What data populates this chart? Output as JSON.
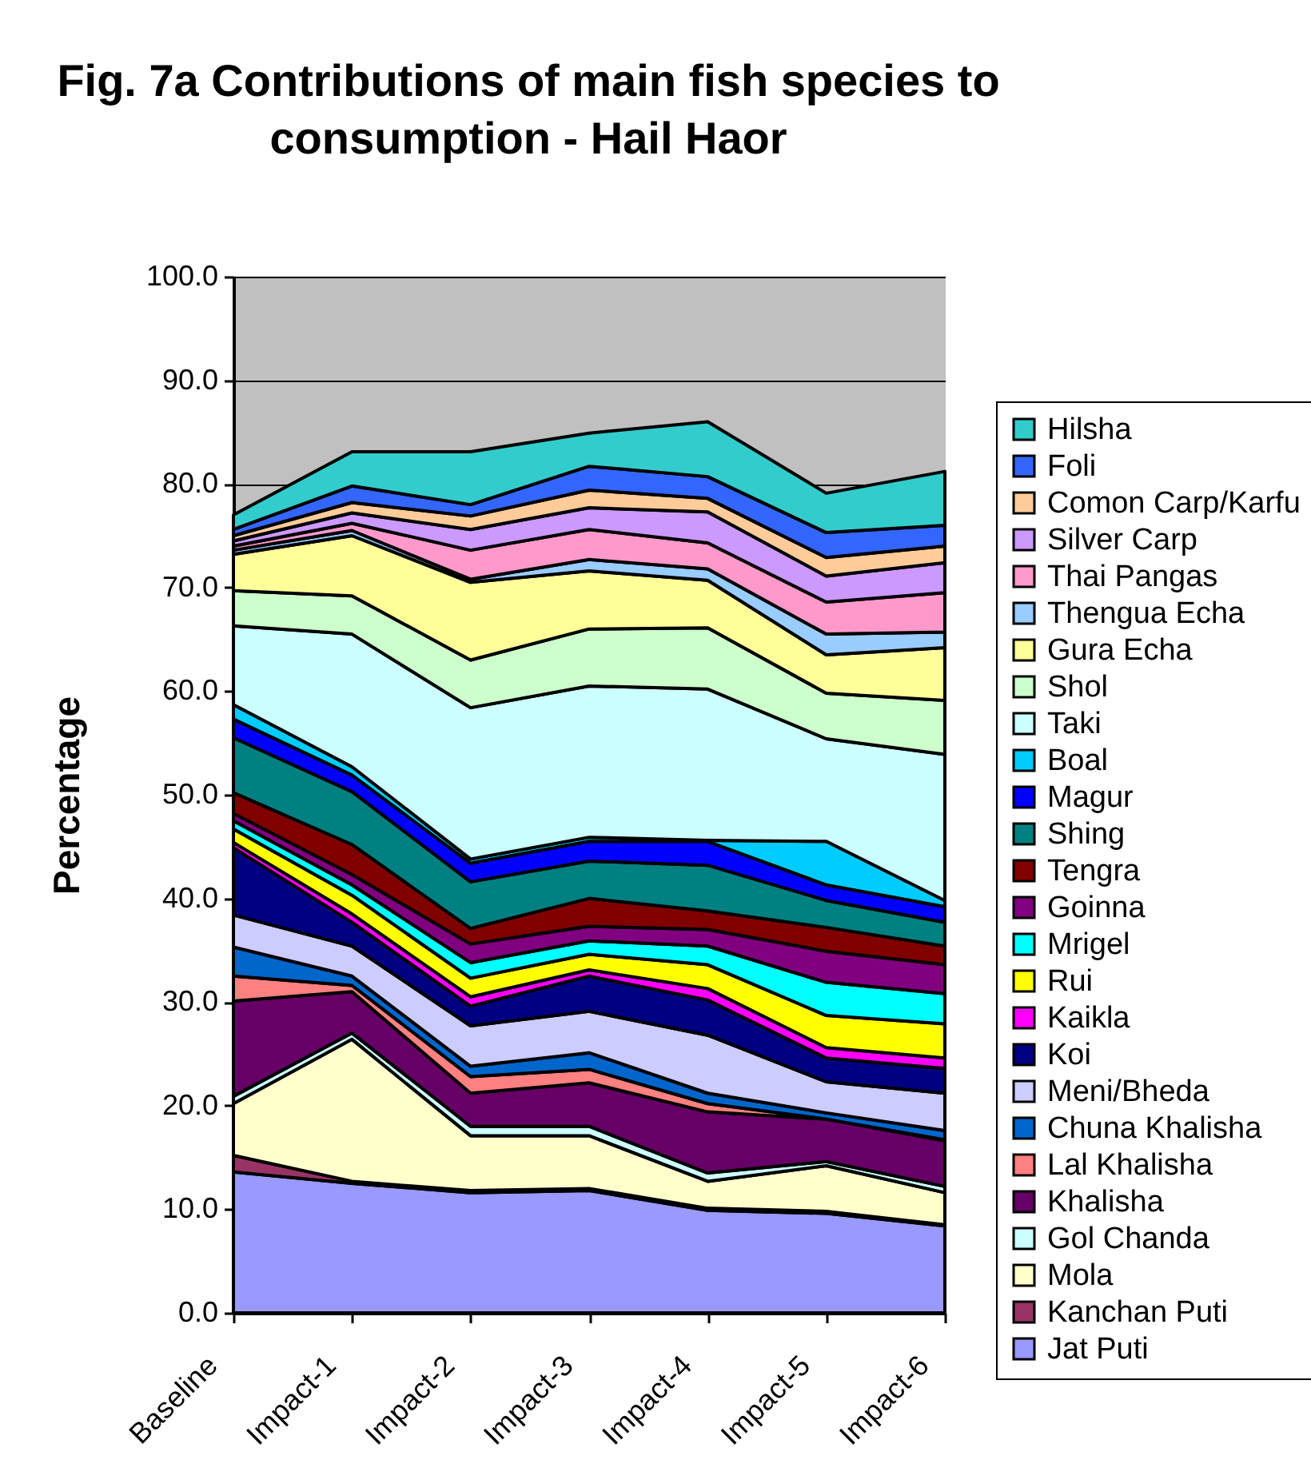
{
  "chart_data": {
    "type": "area",
    "stacked": true,
    "title": "Fig. 7a  Contributions of main fish species to\nconsumption - Hail Haor",
    "ylabel": "Percentage",
    "categories": [
      "Baseline",
      "Impact-1",
      "Impact-2",
      "Impact-3",
      "Impact-4",
      "Impact-5",
      "Impact-6"
    ],
    "ylim": [
      0,
      100
    ],
    "yticks": [
      {
        "value": 0,
        "label": "0.0"
      },
      {
        "value": 10,
        "label": "10.0"
      },
      {
        "value": 20,
        "label": "20.0"
      },
      {
        "value": 30,
        "label": "30.0"
      },
      {
        "value": 40,
        "label": "40.0"
      },
      {
        "value": 50,
        "label": "50.0"
      },
      {
        "value": 60,
        "label": "60.0"
      },
      {
        "value": 70,
        "label": "70.0"
      },
      {
        "value": 80,
        "label": "80.0"
      },
      {
        "value": 90,
        "label": "90.0"
      },
      {
        "value": 100,
        "label": "100.0"
      }
    ],
    "grid": "y",
    "legend": "right",
    "series": [
      {
        "name": "Jat Puti",
        "color": "#9999ff",
        "values": [
          13.6,
          12.5,
          11.6,
          11.8,
          9.9,
          9.6,
          8.4
        ]
      },
      {
        "name": "Kanchan Puti",
        "color": "#993366",
        "values": [
          1.6,
          0.2,
          0.2,
          0.2,
          0.2,
          0.2,
          0.1
        ]
      },
      {
        "name": "Mola",
        "color": "#ffffcc",
        "values": [
          5.0,
          13.7,
          5.3,
          5.1,
          2.6,
          4.4,
          3.1
        ]
      },
      {
        "name": "Gol Chanda",
        "color": "#ccffff",
        "values": [
          0.7,
          0.6,
          0.9,
          0.9,
          0.8,
          0.4,
          0.6
        ]
      },
      {
        "name": "Khalisha",
        "color": "#660066",
        "values": [
          9.2,
          4.0,
          3.2,
          4.2,
          5.9,
          4.1,
          4.4
        ]
      },
      {
        "name": "Lal Khalisha",
        "color": "#ff8080",
        "values": [
          2.4,
          0.6,
          1.6,
          1.3,
          0.8,
          0.0,
          0.1
        ]
      },
      {
        "name": "Chuna Khalisha",
        "color": "#0066cc",
        "values": [
          2.8,
          0.9,
          1.0,
          1.6,
          1.0,
          0.6,
          0.9
        ]
      },
      {
        "name": "Meni/Bheda",
        "color": "#ccccff",
        "values": [
          3.1,
          2.9,
          3.9,
          4.0,
          5.6,
          3.0,
          3.6
        ]
      },
      {
        "name": "Koi",
        "color": "#000080",
        "values": [
          6.5,
          2.3,
          1.9,
          3.4,
          3.4,
          2.3,
          2.4
        ]
      },
      {
        "name": "Kaikla",
        "color": "#ff00ff",
        "values": [
          0.5,
          0.8,
          0.9,
          0.6,
          1.1,
          1.0,
          1.0
        ]
      },
      {
        "name": "Rui",
        "color": "#ffff00",
        "values": [
          1.3,
          1.8,
          1.8,
          1.5,
          2.3,
          3.1,
          3.3
        ]
      },
      {
        "name": "Mrigel",
        "color": "#00ffff",
        "values": [
          0.8,
          1.0,
          1.5,
          1.3,
          1.8,
          3.2,
          2.9
        ]
      },
      {
        "name": "Goinna",
        "color": "#800080",
        "values": [
          0.7,
          1.0,
          1.8,
          1.4,
          1.6,
          3.0,
          2.8
        ]
      },
      {
        "name": "Tengra",
        "color": "#800000",
        "values": [
          2.0,
          2.9,
          1.5,
          2.7,
          1.8,
          2.3,
          1.8
        ]
      },
      {
        "name": "Shing",
        "color": "#008080",
        "values": [
          5.3,
          5.1,
          4.5,
          3.6,
          4.4,
          2.6,
          2.3
        ]
      },
      {
        "name": "Magur",
        "color": "#0000ff",
        "values": [
          1.8,
          1.6,
          1.8,
          1.9,
          2.3,
          1.5,
          1.5
        ]
      },
      {
        "name": "Boal",
        "color": "#00ccff",
        "values": [
          1.4,
          0.8,
          0.4,
          0.4,
          0.1,
          4.2,
          0.6
        ]
      },
      {
        "name": "Taki",
        "color": "#ccffff",
        "values": [
          7.6,
          12.8,
          14.6,
          14.6,
          14.6,
          9.9,
          14.1
        ]
      },
      {
        "name": "Shol",
        "color": "#ccffcc",
        "values": [
          3.4,
          3.7,
          4.6,
          5.5,
          5.9,
          4.4,
          5.2
        ]
      },
      {
        "name": "Gura Echa",
        "color": "#ffff99",
        "values": [
          3.5,
          5.8,
          7.5,
          5.6,
          4.6,
          3.7,
          5.1
        ]
      },
      {
        "name": "Thengua Echa",
        "color": "#99ccff",
        "values": [
          0.4,
          0.5,
          0.3,
          1.1,
          1.1,
          2.0,
          1.5
        ]
      },
      {
        "name": "Thai Pangas",
        "color": "#ff99cc",
        "values": [
          0.4,
          0.7,
          2.8,
          2.9,
          2.5,
          3.1,
          3.8
        ]
      },
      {
        "name": "Silver Carp",
        "color": "#cc99ff",
        "values": [
          0.5,
          1.0,
          2.0,
          2.1,
          3.0,
          2.5,
          2.9
        ]
      },
      {
        "name": "Comon Carp/Karfu",
        "color": "#ffcc99",
        "values": [
          0.5,
          1.0,
          1.3,
          1.7,
          1.3,
          1.8,
          1.6
        ]
      },
      {
        "name": "Foli",
        "color": "#3366ff",
        "values": [
          0.6,
          1.6,
          1.1,
          2.3,
          2.1,
          2.4,
          2.0
        ]
      },
      {
        "name": "Hilsha",
        "color": "#33cccc",
        "values": [
          1.4,
          3.3,
          5.1,
          3.2,
          5.3,
          3.8,
          5.2
        ]
      }
    ]
  }
}
